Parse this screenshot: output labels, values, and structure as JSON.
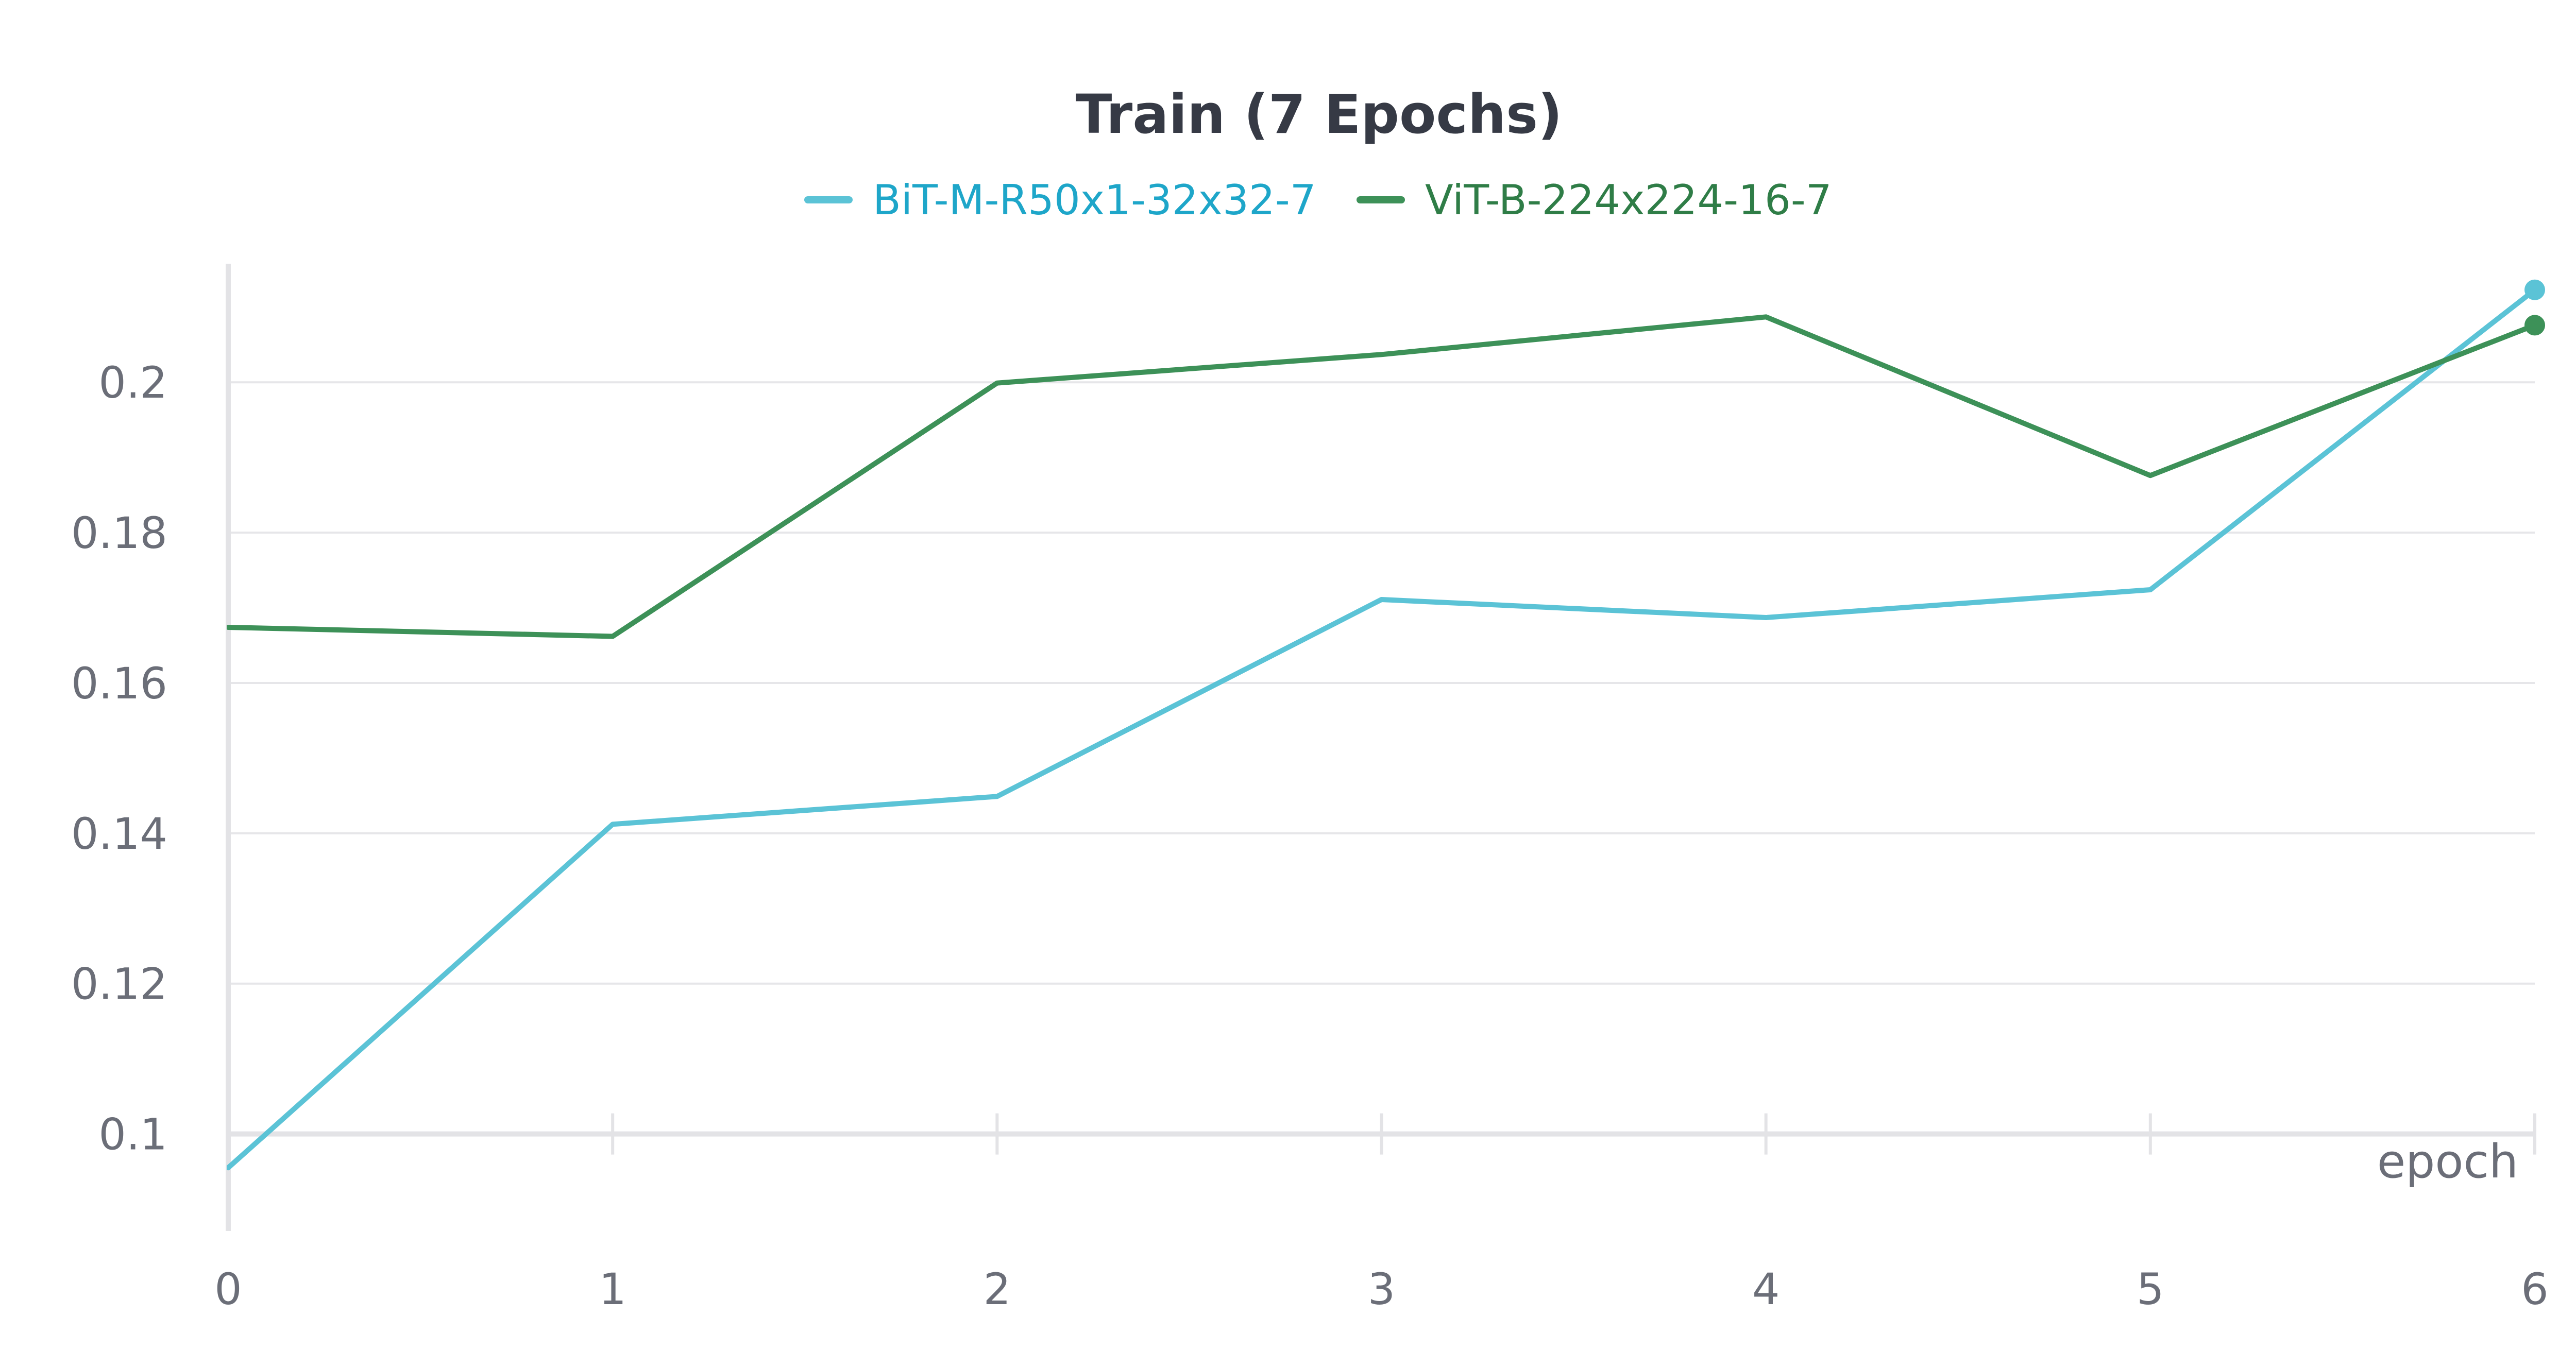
{
  "chart_data": {
    "type": "line",
    "title": "Train (7 Epochs)",
    "xlabel": "epoch",
    "ylabel": "",
    "x": [
      0,
      1,
      2,
      3,
      4,
      5,
      6
    ],
    "xlim": [
      0,
      6
    ],
    "ylim": [
      0.1,
      0.2
    ],
    "x_ticks": [
      "0",
      "1",
      "2",
      "3",
      "4",
      "5",
      "6"
    ],
    "y_ticks": [
      "0.1",
      "0.12",
      "0.14",
      "0.16",
      "0.18",
      "0.2"
    ],
    "grid": true,
    "legend_position": "top-center",
    "series": [
      {
        "name": "BiT-M-R50x1-32x32-7",
        "color": "#5bc3d6",
        "legend_text_color": "#1ea6c9",
        "values": [
          0.0955,
          0.1412,
          0.1449,
          0.1711,
          0.1687,
          0.1724,
          0.2123
        ]
      },
      {
        "name": "ViT-B-224x224-16-7",
        "color": "#3d9158",
        "legend_text_color": "#2f7d47",
        "values": [
          0.1674,
          0.1662,
          0.1999,
          0.2037,
          0.2087,
          0.1876,
          0.2076
        ]
      }
    ]
  }
}
